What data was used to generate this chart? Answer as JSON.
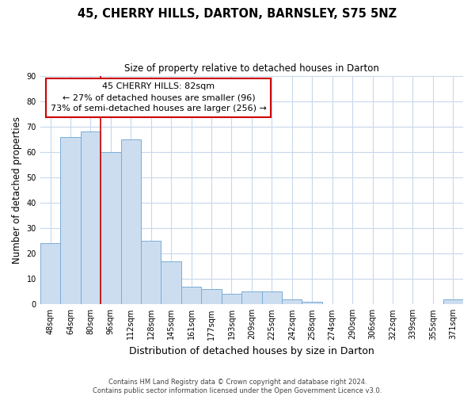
{
  "title1": "45, CHERRY HILLS, DARTON, BARNSLEY, S75 5NZ",
  "title2": "Size of property relative to detached houses in Darton",
  "xlabel": "Distribution of detached houses by size in Darton",
  "ylabel": "Number of detached properties",
  "bar_color": "#ccddf0",
  "bar_edge_color": "#7aadd4",
  "categories": [
    "48sqm",
    "64sqm",
    "80sqm",
    "96sqm",
    "112sqm",
    "128sqm",
    "145sqm",
    "161sqm",
    "177sqm",
    "193sqm",
    "209sqm",
    "225sqm",
    "242sqm",
    "258sqm",
    "274sqm",
    "290sqm",
    "306sqm",
    "322sqm",
    "339sqm",
    "355sqm",
    "371sqm"
  ],
  "values": [
    24,
    66,
    68,
    60,
    65,
    25,
    17,
    7,
    6,
    4,
    5,
    5,
    2,
    1,
    0,
    0,
    0,
    0,
    0,
    0,
    2
  ],
  "ylim": [
    0,
    90
  ],
  "yticks": [
    0,
    10,
    20,
    30,
    40,
    50,
    60,
    70,
    80,
    90
  ],
  "annotation_title": "45 CHERRY HILLS: 82sqm",
  "annotation_line1": "← 27% of detached houses are smaller (96)",
  "annotation_line2": "73% of semi-detached houses are larger (256) →",
  "annotation_box_color": "#ffffff",
  "annotation_box_edge": "#cc0000",
  "property_line_color": "#cc0000",
  "footer1": "Contains HM Land Registry data © Crown copyright and database right 2024.",
  "footer2": "Contains public sector information licensed under the Open Government Licence v3.0.",
  "background_color": "#ffffff",
  "grid_color": "#c8d8ec"
}
